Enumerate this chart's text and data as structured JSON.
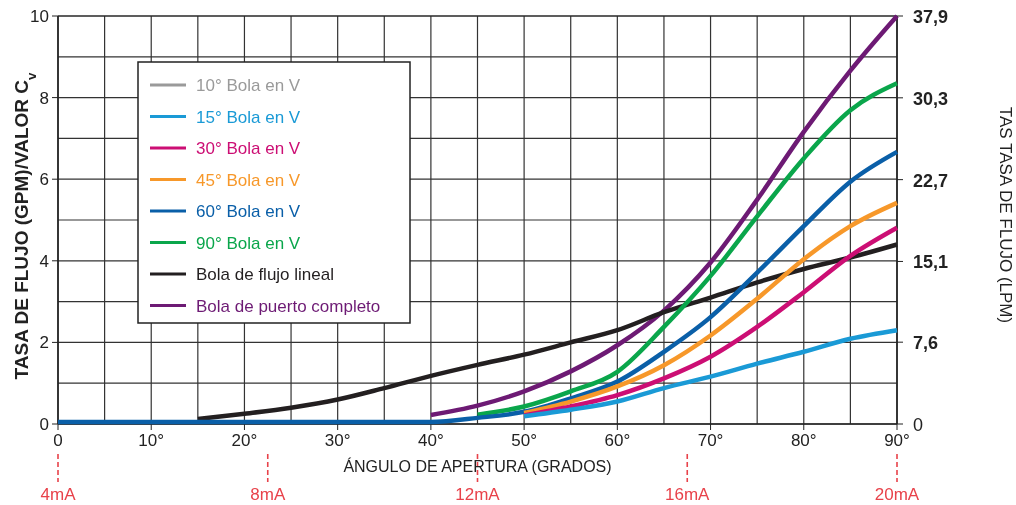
{
  "chart_data": {
    "type": "line",
    "xlabel": "ÁNGULO DE APERTURA (GRADOS)",
    "ylabel": "TASA DE FLUJO (GPM)/VALOR C$_{v}$",
    "y2label": "TAS  TASA DE FLUJO (LPM)",
    "x": [
      0,
      5,
      10,
      15,
      20,
      25,
      30,
      35,
      40,
      45,
      50,
      55,
      60,
      65,
      70,
      75,
      80,
      85,
      90
    ],
    "xlim": [
      0,
      90
    ],
    "xticks": [
      0,
      {
        "value": 5,
        "label": null
      },
      {
        "value": 10,
        "label": "10°"
      },
      {
        "value": 15,
        "label": null
      },
      {
        "value": 20,
        "label": "20°"
      },
      {
        "value": 25,
        "label": null
      },
      {
        "value": 30,
        "label": "30°"
      },
      {
        "value": 35,
        "label": null
      },
      {
        "value": 40,
        "label": "40°"
      },
      {
        "value": 45,
        "label": null
      },
      {
        "value": 50,
        "label": "50°"
      },
      {
        "value": 55,
        "label": null
      },
      {
        "value": 60,
        "label": "60°"
      },
      {
        "value": 65,
        "label": null
      },
      {
        "value": 70,
        "label": "70°"
      },
      {
        "value": 75,
        "label": null
      },
      {
        "value": 80,
        "label": "80°"
      },
      {
        "value": 85,
        "label": null
      },
      {
        "value": 90,
        "label": "90°"
      }
    ],
    "ylim": [
      0,
      10
    ],
    "yticks": [
      0,
      {
        "value": 1,
        "label": null
      },
      2,
      {
        "value": 3,
        "label": null
      },
      4,
      {
        "value": 5,
        "label": null
      },
      6,
      {
        "value": 7,
        "label": null
      },
      8,
      {
        "value": 9,
        "label": null
      },
      10
    ],
    "series": [
      {
        "name": "10° Bola en V",
        "color": "#9a9a9a",
        "values": [
          null,
          null,
          null,
          null,
          null,
          null,
          null,
          null,
          null,
          null,
          null,
          null,
          null,
          null,
          null,
          null,
          null,
          null,
          null
        ]
      },
      {
        "name": "15° Bola en V",
        "color": "#1a9ad6",
        "values": [
          null,
          null,
          null,
          null,
          null,
          null,
          null,
          null,
          null,
          null,
          0.19,
          0.35,
          0.55,
          0.88,
          1.16,
          1.48,
          1.77,
          2.09,
          2.3
        ]
      },
      {
        "name": "30° Bola en V",
        "color": "#cc0e74",
        "values": [
          null,
          null,
          null,
          null,
          null,
          null,
          null,
          null,
          null,
          null,
          0.21,
          0.43,
          0.71,
          1.12,
          1.65,
          2.38,
          3.23,
          4.12,
          4.81
        ]
      },
      {
        "name": "45° Bola en V",
        "color": "#f7982a",
        "values": [
          null,
          null,
          null,
          null,
          null,
          null,
          null,
          null,
          null,
          null,
          0.27,
          0.55,
          0.92,
          1.44,
          2.17,
          3.07,
          4.04,
          4.85,
          5.42
        ]
      },
      {
        "name": "60° Bola en V",
        "color": "#0a5fa8",
        "values": [
          0.05,
          0.05,
          0.05,
          0.05,
          0.05,
          0.05,
          0.05,
          0.05,
          0.05,
          0.15,
          0.3,
          0.63,
          1.04,
          1.77,
          2.62,
          3.71,
          4.85,
          5.94,
          6.67
        ]
      },
      {
        "name": "90° Bola en V",
        "color": "#0aa64b",
        "values": [
          null,
          null,
          null,
          null,
          null,
          null,
          null,
          null,
          null,
          0.23,
          0.43,
          0.8,
          1.28,
          2.38,
          3.63,
          5.09,
          6.51,
          7.69,
          8.35
        ]
      },
      {
        "name": "Bola de flujo lineal",
        "color": "#231f20",
        "values": [
          null,
          null,
          null,
          0.12,
          0.25,
          0.4,
          0.6,
          0.88,
          1.18,
          1.45,
          1.7,
          2.0,
          2.3,
          2.74,
          3.1,
          3.47,
          3.8,
          4.08,
          4.4
        ]
      },
      {
        "name": "Bola de puerto completo",
        "color": "#6d1a74",
        "values": [
          null,
          null,
          null,
          null,
          null,
          null,
          null,
          null,
          0.22,
          0.45,
          0.8,
          1.29,
          1.93,
          2.78,
          3.96,
          5.5,
          7.16,
          8.66,
          10.0
        ]
      }
    ],
    "y2lim": [
      0,
      37.9
    ],
    "y2ticks": [
      0,
      {
        "value": 7.6,
        "label": "7,6"
      },
      {
        "value": 15.1,
        "label": "15,1"
      },
      {
        "value": 22.7,
        "label": "22,7"
      },
      {
        "value": 30.3,
        "label": "30,3"
      },
      {
        "value": 37.9,
        "label": "37,9"
      }
    ],
    "x2lim": [
      4,
      20
    ],
    "x2ticks": [
      {
        "value": 4,
        "label": "4mA"
      },
      {
        "value": 8,
        "label": "8mA"
      },
      {
        "value": 12,
        "label": "12mA"
      },
      {
        "value": 16,
        "label": "16mA"
      },
      {
        "value": 20,
        "label": "20mA"
      }
    ],
    "grid": true,
    "legend": "top left",
    "marker": "none",
    "line_style": "solid"
  }
}
